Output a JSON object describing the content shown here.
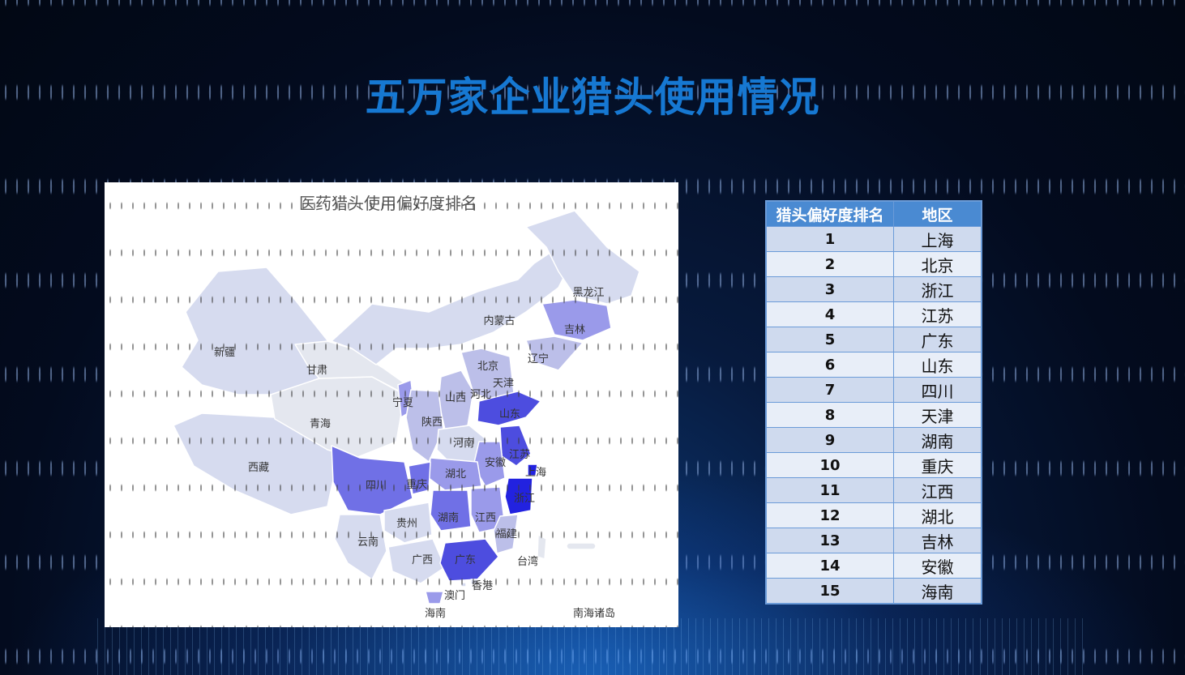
{
  "page": {
    "title": "五万家企业猎头使用情况"
  },
  "map": {
    "title": "医药猎头使用偏好度排名",
    "colors": {
      "level1": "#2222e0",
      "level2": "#4d4ddf",
      "level3": "#7070e6",
      "level4": "#9a9aea",
      "level5": "#bcbfe9",
      "level6": "#d6dbef",
      "level7": "#e4e7ef"
    },
    "labels": [
      {
        "name": "黑龙江",
        "level": 6
      },
      {
        "name": "吉林",
        "level": 4
      },
      {
        "name": "辽宁",
        "level": 5
      },
      {
        "name": "内蒙古",
        "level": 6
      },
      {
        "name": "新疆",
        "level": 6
      },
      {
        "name": "甘肃",
        "level": 7
      },
      {
        "name": "北京",
        "level": 1
      },
      {
        "name": "天津",
        "level": 3
      },
      {
        "name": "河北",
        "level": 5
      },
      {
        "name": "山西",
        "level": 5
      },
      {
        "name": "宁夏",
        "level": 4
      },
      {
        "name": "山东",
        "level": 2
      },
      {
        "name": "陕西",
        "level": 5
      },
      {
        "name": "青海",
        "level": 7
      },
      {
        "name": "河南",
        "level": 6
      },
      {
        "name": "江苏",
        "level": 2
      },
      {
        "name": "安徽",
        "level": 4
      },
      {
        "name": "上海",
        "level": 1
      },
      {
        "name": "西藏",
        "level": 6
      },
      {
        "name": "四川",
        "level": 3
      },
      {
        "name": "重庆",
        "level": 3
      },
      {
        "name": "湖北",
        "level": 4
      },
      {
        "name": "浙江",
        "level": 1
      },
      {
        "name": "湖南",
        "level": 3
      },
      {
        "name": "江西",
        "level": 4
      },
      {
        "name": "贵州",
        "level": 6
      },
      {
        "name": "福建",
        "level": 5
      },
      {
        "name": "云南",
        "level": 6
      },
      {
        "name": "广西",
        "level": 6
      },
      {
        "name": "广东",
        "level": 2
      },
      {
        "name": "台湾",
        "level": 7
      },
      {
        "name": "香港",
        "level": 6
      },
      {
        "name": "澳门",
        "level": 6
      },
      {
        "name": "海南",
        "level": 4
      },
      {
        "name": "南海诸岛",
        "level": 7
      }
    ]
  },
  "ranking_table": {
    "headers": [
      "猎头偏好度排名",
      "地区"
    ],
    "rows": [
      {
        "rank": "1",
        "region": "上海"
      },
      {
        "rank": "2",
        "region": "北京"
      },
      {
        "rank": "3",
        "region": "浙江"
      },
      {
        "rank": "4",
        "region": "江苏"
      },
      {
        "rank": "5",
        "region": "广东"
      },
      {
        "rank": "6",
        "region": "山东"
      },
      {
        "rank": "7",
        "region": "四川"
      },
      {
        "rank": "8",
        "region": "天津"
      },
      {
        "rank": "9",
        "region": "湖南"
      },
      {
        "rank": "10",
        "region": "重庆"
      },
      {
        "rank": "11",
        "region": "江西"
      },
      {
        "rank": "12",
        "region": "湖北"
      },
      {
        "rank": "13",
        "region": "吉林"
      },
      {
        "rank": "14",
        "region": "安徽"
      },
      {
        "rank": "15",
        "region": "海南"
      }
    ]
  }
}
